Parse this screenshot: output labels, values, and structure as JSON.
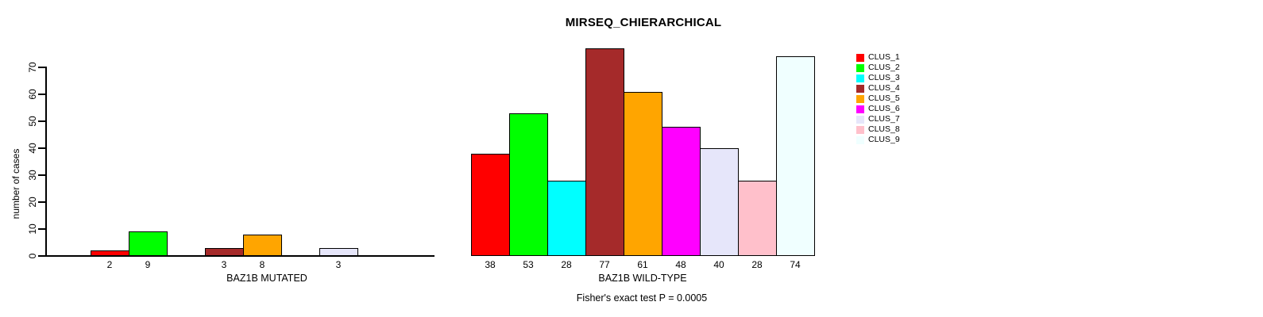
{
  "chart_data": {
    "type": "bar",
    "title": "MIRSEQ_CHIERARCHICAL",
    "ylabel": "number of cases",
    "annotation": "Fisher's exact test P = 0.0005",
    "yticks": [
      0,
      10,
      20,
      30,
      40,
      50,
      60,
      70
    ],
    "ylim": [
      0,
      77
    ],
    "grid": false,
    "legend_position": "right",
    "clusters": [
      {
        "name": "CLUS_1",
        "color": "#FF0000"
      },
      {
        "name": "CLUS_2",
        "color": "#00FF00"
      },
      {
        "name": "CLUS_3",
        "color": "#00FFFF"
      },
      {
        "name": "CLUS_4",
        "color": "#A52A2A"
      },
      {
        "name": "CLUS_5",
        "color": "#FFA500"
      },
      {
        "name": "CLUS_6",
        "color": "#FF00FF"
      },
      {
        "name": "CLUS_7",
        "color": "#E6E6FA"
      },
      {
        "name": "CLUS_8",
        "color": "#FFC0CB"
      },
      {
        "name": "CLUS_9",
        "color": "#F0FFFF"
      }
    ],
    "groups": [
      {
        "label": "BAZ1B MUTATED",
        "values": [
          2,
          9,
          0,
          3,
          8,
          0,
          3,
          0,
          0
        ]
      },
      {
        "label": "BAZ1B WILD-TYPE",
        "values": [
          38,
          53,
          28,
          77,
          61,
          48,
          40,
          28,
          74
        ]
      }
    ]
  }
}
